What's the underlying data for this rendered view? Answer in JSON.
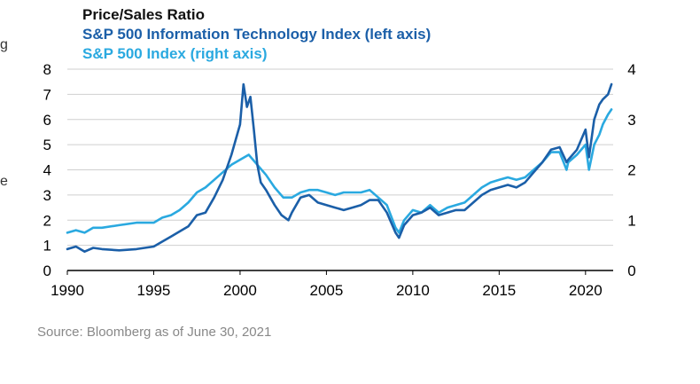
{
  "page": {
    "left_fragments": [
      "g",
      "e"
    ],
    "source": "Source: Bloomberg as of June 30, 2021"
  },
  "chart_data": {
    "type": "line",
    "title": "Price/Sales Ratio",
    "xlim": [
      1990,
      2021.6
    ],
    "x_ticks": [
      1990,
      1995,
      2000,
      2005,
      2010,
      2015,
      2020
    ],
    "left_axis": {
      "ylim": [
        0,
        8
      ],
      "ticks": [
        0,
        1,
        2,
        3,
        4,
        5,
        6,
        7,
        8
      ]
    },
    "right_axis": {
      "ylim": [
        0,
        4
      ],
      "ticks": [
        0,
        1,
        2,
        3,
        4
      ]
    },
    "grid": true,
    "colors": {
      "tech": "#1b5fa8",
      "sp500": "#2aa9e0",
      "grid": "#cfcfcf",
      "axis": "#000000"
    },
    "series": [
      {
        "name": "S&P 500 Information Technology Index (left axis)",
        "axis": "left",
        "points": [
          [
            1990.0,
            0.85
          ],
          [
            1990.5,
            0.95
          ],
          [
            1991.0,
            0.75
          ],
          [
            1991.5,
            0.9
          ],
          [
            1992.0,
            0.85
          ],
          [
            1993.0,
            0.8
          ],
          [
            1994.0,
            0.85
          ],
          [
            1995.0,
            0.95
          ],
          [
            1995.5,
            1.15
          ],
          [
            1996.0,
            1.35
          ],
          [
            1996.5,
            1.55
          ],
          [
            1997.0,
            1.75
          ],
          [
            1997.5,
            2.2
          ],
          [
            1998.0,
            2.3
          ],
          [
            1998.5,
            2.9
          ],
          [
            1999.0,
            3.6
          ],
          [
            1999.5,
            4.6
          ],
          [
            2000.0,
            5.8
          ],
          [
            2000.2,
            7.4
          ],
          [
            2000.4,
            6.5
          ],
          [
            2000.6,
            6.9
          ],
          [
            2000.8,
            5.6
          ],
          [
            2001.0,
            4.2
          ],
          [
            2001.2,
            3.5
          ],
          [
            2001.5,
            3.2
          ],
          [
            2002.0,
            2.6
          ],
          [
            2002.4,
            2.2
          ],
          [
            2002.8,
            2.0
          ],
          [
            2003.0,
            2.3
          ],
          [
            2003.5,
            2.9
          ],
          [
            2004.0,
            3.0
          ],
          [
            2004.5,
            2.7
          ],
          [
            2005.0,
            2.6
          ],
          [
            2005.5,
            2.5
          ],
          [
            2006.0,
            2.4
          ],
          [
            2006.5,
            2.5
          ],
          [
            2007.0,
            2.6
          ],
          [
            2007.5,
            2.8
          ],
          [
            2008.0,
            2.8
          ],
          [
            2008.5,
            2.3
          ],
          [
            2009.0,
            1.5
          ],
          [
            2009.2,
            1.3
          ],
          [
            2009.5,
            1.8
          ],
          [
            2010.0,
            2.2
          ],
          [
            2010.5,
            2.3
          ],
          [
            2011.0,
            2.5
          ],
          [
            2011.5,
            2.2
          ],
          [
            2012.0,
            2.3
          ],
          [
            2012.5,
            2.4
          ],
          [
            2013.0,
            2.4
          ],
          [
            2013.5,
            2.7
          ],
          [
            2014.0,
            3.0
          ],
          [
            2014.5,
            3.2
          ],
          [
            2015.0,
            3.3
          ],
          [
            2015.5,
            3.4
          ],
          [
            2016.0,
            3.3
          ],
          [
            2016.5,
            3.5
          ],
          [
            2017.0,
            3.9
          ],
          [
            2017.5,
            4.3
          ],
          [
            2018.0,
            4.8
          ],
          [
            2018.5,
            4.9
          ],
          [
            2018.9,
            4.3
          ],
          [
            2019.0,
            4.4
          ],
          [
            2019.5,
            4.8
          ],
          [
            2020.0,
            5.6
          ],
          [
            2020.2,
            4.5
          ],
          [
            2020.5,
            6.0
          ],
          [
            2020.8,
            6.6
          ],
          [
            2021.0,
            6.8
          ],
          [
            2021.3,
            7.0
          ],
          [
            2021.5,
            7.4
          ]
        ]
      },
      {
        "name": "S&P 500 Index (right axis)",
        "axis": "right",
        "points": [
          [
            1990.0,
            0.75
          ],
          [
            1990.5,
            0.8
          ],
          [
            1991.0,
            0.75
          ],
          [
            1991.5,
            0.85
          ],
          [
            1992.0,
            0.85
          ],
          [
            1993.0,
            0.9
          ],
          [
            1994.0,
            0.95
          ],
          [
            1995.0,
            0.95
          ],
          [
            1995.5,
            1.05
          ],
          [
            1996.0,
            1.1
          ],
          [
            1996.5,
            1.2
          ],
          [
            1997.0,
            1.35
          ],
          [
            1997.5,
            1.55
          ],
          [
            1998.0,
            1.65
          ],
          [
            1998.5,
            1.8
          ],
          [
            1999.0,
            1.95
          ],
          [
            1999.5,
            2.1
          ],
          [
            2000.0,
            2.2
          ],
          [
            2000.5,
            2.3
          ],
          [
            2001.0,
            2.1
          ],
          [
            2001.5,
            1.9
          ],
          [
            2002.0,
            1.65
          ],
          [
            2002.5,
            1.45
          ],
          [
            2003.0,
            1.45
          ],
          [
            2003.5,
            1.55
          ],
          [
            2004.0,
            1.6
          ],
          [
            2004.5,
            1.6
          ],
          [
            2005.0,
            1.55
          ],
          [
            2005.5,
            1.5
          ],
          [
            2006.0,
            1.55
          ],
          [
            2006.5,
            1.55
          ],
          [
            2007.0,
            1.55
          ],
          [
            2007.5,
            1.6
          ],
          [
            2008.0,
            1.45
          ],
          [
            2008.5,
            1.3
          ],
          [
            2009.0,
            0.85
          ],
          [
            2009.2,
            0.75
          ],
          [
            2009.5,
            1.0
          ],
          [
            2010.0,
            1.2
          ],
          [
            2010.5,
            1.15
          ],
          [
            2011.0,
            1.3
          ],
          [
            2011.5,
            1.15
          ],
          [
            2012.0,
            1.25
          ],
          [
            2012.5,
            1.3
          ],
          [
            2013.0,
            1.35
          ],
          [
            2013.5,
            1.5
          ],
          [
            2014.0,
            1.65
          ],
          [
            2014.5,
            1.75
          ],
          [
            2015.0,
            1.8
          ],
          [
            2015.5,
            1.85
          ],
          [
            2016.0,
            1.8
          ],
          [
            2016.5,
            1.85
          ],
          [
            2017.0,
            2.0
          ],
          [
            2017.5,
            2.15
          ],
          [
            2018.0,
            2.35
          ],
          [
            2018.5,
            2.35
          ],
          [
            2018.9,
            2.0
          ],
          [
            2019.0,
            2.15
          ],
          [
            2019.5,
            2.3
          ],
          [
            2020.0,
            2.5
          ],
          [
            2020.2,
            2.0
          ],
          [
            2020.5,
            2.5
          ],
          [
            2020.8,
            2.7
          ],
          [
            2021.0,
            2.9
          ],
          [
            2021.3,
            3.1
          ],
          [
            2021.5,
            3.2
          ]
        ]
      }
    ]
  }
}
